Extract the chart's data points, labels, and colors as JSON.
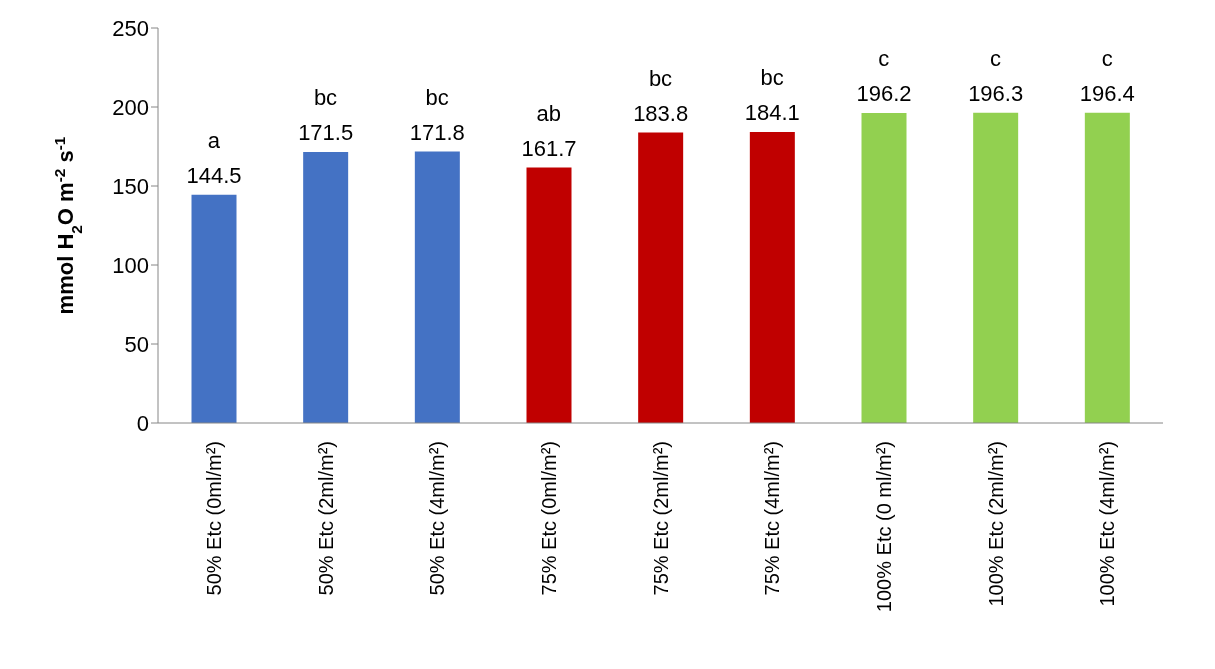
{
  "chart_data": {
    "type": "bar",
    "ylabel": "mmol H$_{2}$O m$^{-2}$ s$^{-1}$",
    "categories": [
      "50% Etc (0ml/m²)",
      "50% Etc (2ml/m²)",
      "50% Etc (4ml/m²)",
      "75% Etc (0ml/m²)",
      "75% Etc (2ml/m²)",
      "75% Etc (4ml/m²)",
      "100% Etc (0 ml/m²)",
      "100% Etc (2ml/m²)",
      "100% Etc (4ml/m²)"
    ],
    "values": [
      144.5,
      171.5,
      171.8,
      161.7,
      183.8,
      184.1,
      196.2,
      196.3,
      196.4
    ],
    "colors": [
      "#4472c4",
      "#4472c4",
      "#4472c4",
      "#c00000",
      "#c00000",
      "#c00000",
      "#92d050",
      "#92d050",
      "#92d050"
    ],
    "data_labels": true,
    "ylim": [
      0,
      250
    ],
    "yticks": [
      0,
      50,
      100,
      150,
      200,
      250
    ],
    "grid": false,
    "legend": false,
    "annotations": [
      {
        "text": "a",
        "x": "50% Etc (0ml/m²)",
        "y": 144.5
      },
      {
        "text": "bc",
        "x": "50% Etc (2ml/m²)",
        "y": 171.5
      },
      {
        "text": "bc",
        "x": "50% Etc (4ml/m²)",
        "y": 171.8
      },
      {
        "text": "ab",
        "x": "75% Etc (0ml/m²)",
        "y": 161.7
      },
      {
        "text": "bc",
        "x": "75% Etc (2ml/m²)",
        "y": 183.8
      },
      {
        "text": "bc",
        "x": "75% Etc (4ml/m²)",
        "y": 184.1
      },
      {
        "text": "c",
        "x": "100% Etc (0 ml/m²)",
        "y": 196.2
      },
      {
        "text": "c",
        "x": "100% Etc (2ml/m²)",
        "y": 196.3
      },
      {
        "text": "c",
        "x": "100% Etc (4ml/m²)",
        "y": 196.4
      }
    ]
  }
}
